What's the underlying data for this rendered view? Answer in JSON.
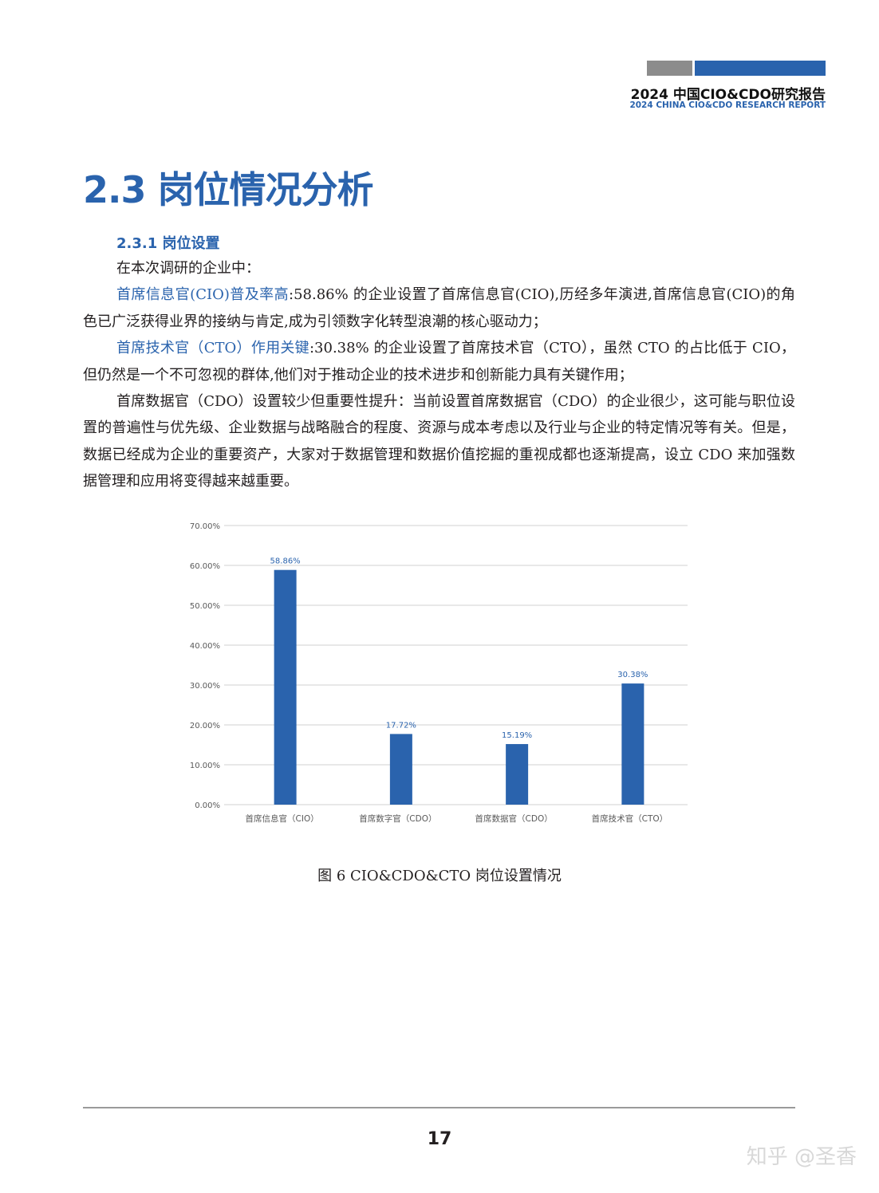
{
  "header": {
    "title_cn": "2024 中国CIO&CDO研究报告",
    "title_en": "2024 CHINA CIO&CDO RESEARCH REPORT"
  },
  "section_title": "2.3 岗位情况分析",
  "subsection_title": "2.3.1 岗位设置",
  "paragraphs": {
    "intro": "在本次调研的企业中：",
    "p1_lead": "首席信息官(CIO)普及率高",
    "p1_text": ":58.86% 的企业设置了首席信息官(CIO),历经多年演进,首席信息官(CIO)的角色已广泛获得业界的接纳与肯定,成为引领数字化转型浪潮的核心驱动力；",
    "p2_lead": "首席技术官（CTO）作用关键",
    "p2_text": ":30.38% 的企业设置了首席技术官（CTO），虽然 CTO 的占比低于 CIO，但仍然是一个不可忽视的群体,他们对于推动企业的技术进步和创新能力具有关键作用；",
    "p3_text": "首席数据官（CDO）设置较少但重要性提升：当前设置首席数据官（CDO）的企业很少，这可能与职位设置的普遍性与优先级、企业数据与战略融合的程度、资源与成本考虑以及行业与企业的特定情况等有关。但是，数据已经成为企业的重要资产，大家对于数据管理和数据价值挖掘的重视成都也逐渐提高，设立 CDO 来加强数据管理和应用将变得越来越重要。"
  },
  "chart_data": {
    "type": "bar",
    "categories": [
      "首席信息官（CIO）",
      "首席数字官（CDO）",
      "首席数据官（CDO）",
      "首席技术官（CTO）"
    ],
    "values": [
      58.86,
      17.72,
      15.19,
      30.38
    ],
    "data_labels": [
      "58.86%",
      "17.72%",
      "15.19%",
      "30.38%"
    ],
    "ylim": [
      0,
      70
    ],
    "yticks": [
      "0.00%",
      "10.00%",
      "20.00%",
      "30.00%",
      "40.00%",
      "50.00%",
      "60.00%",
      "70.00%"
    ],
    "grid": true,
    "bar_color": "#2a63ad",
    "label_color": "#2a63ad"
  },
  "caption": "图 6 CIO&CDO&CTO 岗位设置情况",
  "page_number": "17",
  "watermark": "知乎 @圣香"
}
